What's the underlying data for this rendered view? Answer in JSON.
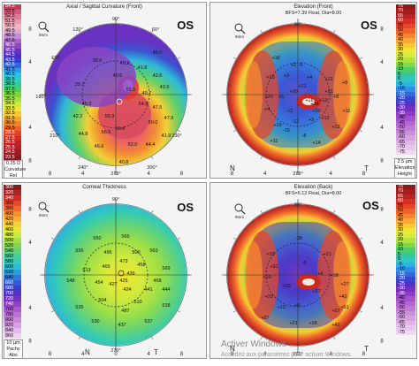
{
  "panels": {
    "axial": {
      "title": "Axial / Sagittal Curvature (Front)",
      "os": "OS",
      "scale": [
        "54.5",
        "53.5",
        "52.5",
        "51.5",
        "50.5",
        "49.5",
        "48.5",
        "47.5",
        "46.5",
        "45.5",
        "44.5",
        "43.5",
        "42.5",
        "41.5",
        "40.5",
        "39.5",
        "38.5",
        "37.5",
        "36.5",
        "35.5",
        "34.5",
        "33.5",
        "32.5",
        "31.5",
        "30.5",
        "29.5",
        "28.5",
        "27.5",
        "26.5",
        "25.5",
        "24.5",
        "23.5"
      ],
      "scale_colors": [
        "#c03a5a",
        "#d25b7a",
        "#e07a94",
        "#ea9aab",
        "#f1b4c0",
        "#d9a9d9",
        "#c58ad6",
        "#a964cc",
        "#8a49c4",
        "#6a2fc0",
        "#4b2cc7",
        "#2f3fd4",
        "#2e6be0",
        "#2d99e8",
        "#2bc0e6",
        "#2bd0c0",
        "#33d08a",
        "#4fd153",
        "#7ad83d",
        "#a8e236",
        "#d4ea35",
        "#f2e532",
        "#f8c72e",
        "#f6a42a",
        "#f2822a",
        "#ef5f28",
        "#e83e25",
        "#d62922",
        "#c41f22",
        "#b31c24",
        "#a01a22",
        "#8b1820"
      ],
      "foot": [
        "0.25 D",
        "Curvature",
        "Rel"
      ],
      "angles": {
        "top": "90°",
        "tl": "120°",
        "tr": "60°",
        "left": "150°",
        "l180": "180°",
        "bl": "210°",
        "b240": "240°",
        "bottom": "270°",
        "b300": "300°",
        "br": "330°"
      },
      "xticks": [
        "8",
        "4",
        "0",
        "4",
        "8"
      ],
      "yticks": [
        "8",
        "4",
        "0",
        "4",
        "8"
      ],
      "labels": [
        "38.0",
        "40.2",
        "41.8",
        "40.6",
        "39.7",
        "42.6",
        "43.9",
        "49.7",
        "47.5",
        "50.0",
        "47.9",
        "51.5",
        "54.9",
        "56.4",
        "55.3",
        "56.5",
        "52.0",
        "46.6",
        "44.8",
        "42.2",
        "40.8",
        "44.4",
        "41.9",
        "45.3",
        "46.0"
      ]
    },
    "elevFront": {
      "title": "Elevation (Front)",
      "subtitle": "BFS=7.39 Float, Dia=8.00",
      "os": "OS",
      "scale": [
        "75",
        "70",
        "65",
        "60",
        "55",
        "50",
        "45",
        "40",
        "35",
        "30",
        "25",
        "20",
        "15",
        "10",
        "5",
        "0",
        "-5",
        "-10",
        "-15",
        "-20",
        "-25",
        "-30",
        "-35",
        "-40",
        "-45",
        "-50",
        "-55",
        "-60",
        "-65",
        "-70",
        "-75"
      ],
      "scale_colors": [
        "#8b1a1a",
        "#a11d1e",
        "#bb2322",
        "#d62d25",
        "#e5452a",
        "#ef632c",
        "#f6852f",
        "#f9a832",
        "#f7c934",
        "#f0e437",
        "#d6ec3c",
        "#aee344",
        "#80d84f",
        "#52cd65",
        "#34c99a",
        "#30c7c8",
        "#2fb2e4",
        "#2f8ee4",
        "#3367dc",
        "#3d45d0",
        "#5530c5",
        "#7430c0",
        "#8f3cc4",
        "#a350ca",
        "#b466d0",
        "#c07ad6",
        "#cb8edb",
        "#d5a2e0",
        "#dfb6e6",
        "#e7c8ec",
        "#efd9f1"
      ],
      "foot": [
        "2.5 µm",
        "Elevation",
        "Height"
      ],
      "labels": [
        "+16",
        "+20",
        "+21",
        "+16",
        "+12",
        "+15",
        "+20",
        "+12",
        "+4",
        "+3",
        "+11",
        "+19",
        "+13",
        "+20",
        "+8",
        "+34",
        "+12",
        "+11",
        "+14",
        "+2",
        "+3",
        "+2",
        "+4",
        "+12",
        "-12",
        "-15",
        "-8",
        "-6",
        "+5",
        "+8"
      ],
      "nt": [
        "N",
        "T"
      ]
    },
    "thickness": {
      "title": "Corneal Thickness",
      "os": "OS",
      "scale": [
        "300",
        "320",
        "340",
        "360",
        "380",
        "400",
        "420",
        "440",
        "460",
        "480",
        "500",
        "520",
        "540",
        "560",
        "580",
        "600",
        "620",
        "640",
        "660",
        "680",
        "700",
        "720",
        "740",
        "760",
        "780",
        "800",
        "820",
        "840",
        "860"
      ],
      "scale_colors": [
        "#8b1a1a",
        "#b22222",
        "#d22d25",
        "#e8492b",
        "#f26b2d",
        "#f7902f",
        "#f9b233",
        "#f5d236",
        "#e8e73a",
        "#c9ea3f",
        "#a3e046",
        "#7fd65a",
        "#5fd27b",
        "#42cf9d",
        "#33cbbb",
        "#2fbcd9",
        "#309be4",
        "#3078df",
        "#3558d6",
        "#3e3dcb",
        "#5730c3",
        "#7533bf",
        "#9143c5",
        "#a75acc",
        "#bb72d3",
        "#cb8ad9",
        "#d8a2e0",
        "#e4bbe8",
        "#efd4f0"
      ],
      "foot": [
        "10 µm",
        "Pachy",
        "Abs"
      ],
      "labels": [
        "550",
        "565",
        "555",
        "563",
        "569",
        "495",
        "500",
        "548",
        "513",
        "473",
        "458",
        "469",
        "439",
        "425",
        "468",
        "444",
        "454",
        "424",
        "427",
        "441",
        "535",
        "504",
        "510",
        "487",
        "530",
        "437",
        "537",
        "538"
      ],
      "nt": [
        "N",
        "T"
      ]
    },
    "elevBack": {
      "title": "Elevation (Back)",
      "subtitle": "BFS=6.12 Float, Dia=8.00",
      "os": "OS",
      "scale": [
        "75",
        "70",
        "65",
        "60",
        "55",
        "50",
        "45",
        "40",
        "35",
        "30",
        "25",
        "20",
        "15",
        "10",
        "5",
        "0",
        "-5",
        "-10",
        "-15",
        "-20",
        "-25",
        "-30",
        "-35",
        "-40",
        "-45",
        "-50",
        "-55",
        "-60",
        "-65",
        "-70",
        "-75"
      ],
      "scale_colors": [
        "#8b1a1a",
        "#a11d1e",
        "#bb2322",
        "#d62d25",
        "#e5452a",
        "#ef632c",
        "#f6852f",
        "#f9a832",
        "#f7c934",
        "#f0e437",
        "#d6ec3c",
        "#aee344",
        "#80d84f",
        "#52cd65",
        "#34c99a",
        "#30c7c8",
        "#2fb2e4",
        "#2f8ee4",
        "#3367dc",
        "#3d45d0",
        "#5530c5",
        "#7430c0",
        "#8f3cc4",
        "#a350ca",
        "#b466d0",
        "#c07ad6",
        "#cb8edb",
        "#d5a2e0",
        "#dfb6e6",
        "#e7c8ec",
        "#efd9f1"
      ],
      "labels": [
        "-28",
        "+19",
        "-6",
        "+4",
        "+18",
        "+10",
        "+20",
        "+17",
        "+20",
        "+42",
        "+61",
        "+27",
        "+8",
        "+13",
        "+37",
        "+21",
        "+18",
        "+27",
        "+31",
        "+42",
        "+21"
      ],
      "nt": [
        "N",
        "T"
      ]
    }
  },
  "watermark": {
    "line1": "Activer Windows",
    "line2": "Accédez aux paramètres pour activer Windows."
  }
}
